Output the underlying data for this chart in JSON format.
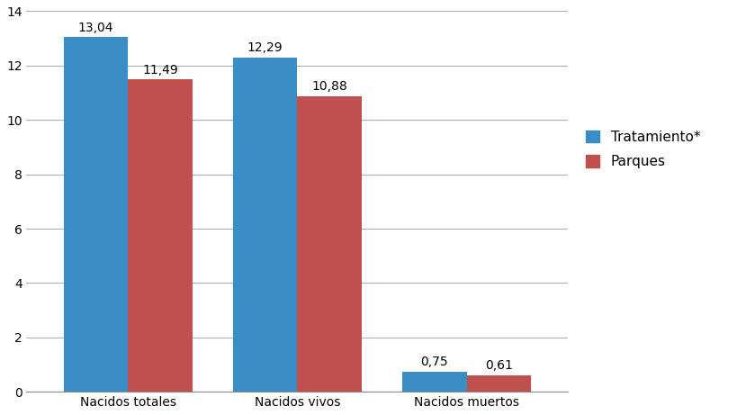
{
  "categories": [
    "Nacidos totales",
    "Nacidos vivos",
    "Nacidos muertos"
  ],
  "tratamiento": [
    13.04,
    12.29,
    0.75
  ],
  "parques": [
    11.49,
    10.88,
    0.61
  ],
  "tratamiento_color": "#3A8DC5",
  "parques_color": "#C0504D",
  "ylim": [
    0,
    14
  ],
  "yticks": [
    0,
    2,
    4,
    6,
    8,
    10,
    12,
    14
  ],
  "legend_tratamiento": "Tratamiento*",
  "legend_parques": "Parques",
  "bar_width": 0.38,
  "label_fontsize": 10,
  "tick_fontsize": 10,
  "legend_fontsize": 11,
  "background_color": "#ffffff",
  "grid_color": "#b0b0b0"
}
